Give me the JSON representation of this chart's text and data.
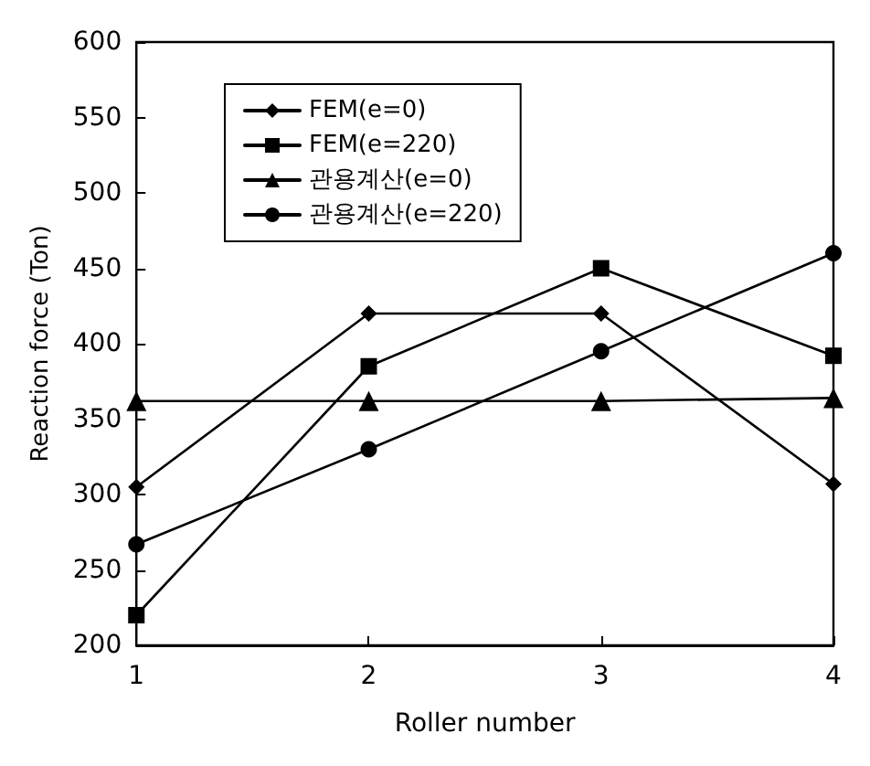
{
  "chart_data": {
    "type": "line",
    "xlabel": "Roller number",
    "ylabel": "Reaction force (Ton)",
    "x": [
      1,
      2,
      3,
      4
    ],
    "xlim": [
      1,
      4
    ],
    "xticks": [
      1,
      2,
      3,
      4
    ],
    "ylim": [
      200,
      600
    ],
    "yticks": [
      200,
      250,
      300,
      350,
      400,
      450,
      500,
      550,
      600
    ],
    "grid": false,
    "legend": "top left",
    "line_style": "solid",
    "series": [
      {
        "name": "FEM(e=0)",
        "color": "#000000",
        "marker": "diamond",
        "values": [
          305,
          420,
          420,
          307
        ]
      },
      {
        "name": "FEM(e=220)",
        "color": "#000000",
        "marker": "square",
        "values": [
          220,
          385,
          450,
          392
        ]
      },
      {
        "name": "관용계산(e=0)",
        "color": "#000000",
        "marker": "triangle",
        "values": [
          362,
          362,
          362,
          364
        ]
      },
      {
        "name": "관용계산(e=220)",
        "color": "#000000",
        "marker": "circle",
        "values": [
          267,
          330,
          395,
          460
        ]
      }
    ]
  }
}
